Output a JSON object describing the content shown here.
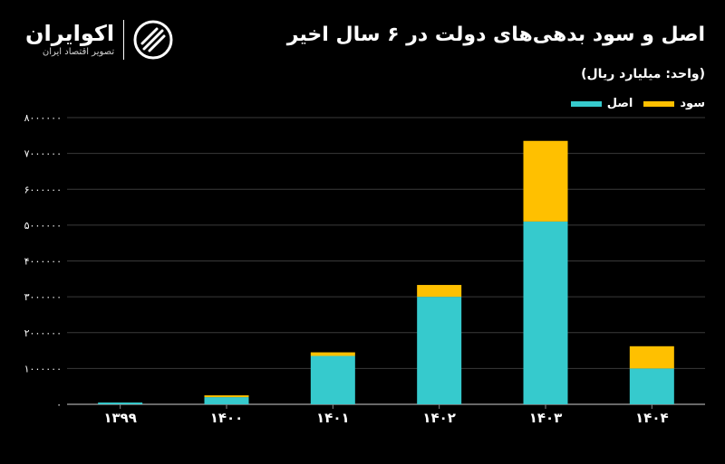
{
  "brand": {
    "name": "اکوایران",
    "tagline": "تصویر اقتصاد ایران",
    "icon": "ekoiran-logo-icon"
  },
  "colors": {
    "principal": "#36CACD",
    "interest": "#FFC000",
    "grid": "#3a3a3a",
    "axis": "#8a8a8a",
    "background": "#000000"
  },
  "chart_data": {
    "type": "bar",
    "stacked": true,
    "title": "اصل و سود بدهی‌های دولت در ۶ سال اخیر",
    "subtitle": "(واحد: میلیارد ریال)",
    "categories": [
      "۱۳۹۹",
      "۱۴۰۰",
      "۱۴۰۱",
      "۱۴۰۲",
      "۱۴۰۳",
      "۱۴۰۴"
    ],
    "series": [
      {
        "name": "اصل",
        "color": "#36CACD",
        "values": [
          50000,
          200000,
          1350000,
          3000000,
          5100000,
          1000000
        ]
      },
      {
        "name": "سود",
        "color": "#FFC000",
        "values": [
          0,
          50000,
          100000,
          330000,
          2250000,
          620000
        ]
      }
    ],
    "yticks": [
      "۰",
      "۱۰۰۰۰۰۰",
      "۲۰۰۰۰۰۰",
      "۳۰۰۰۰۰۰",
      "۴۰۰۰۰۰۰",
      "۵۰۰۰۰۰۰",
      "۶۰۰۰۰۰۰",
      "۷۰۰۰۰۰۰",
      "۸۰۰۰۰۰۰"
    ],
    "ylim": [
      0,
      8000000
    ],
    "grid": true,
    "legend_position": "top-right"
  }
}
